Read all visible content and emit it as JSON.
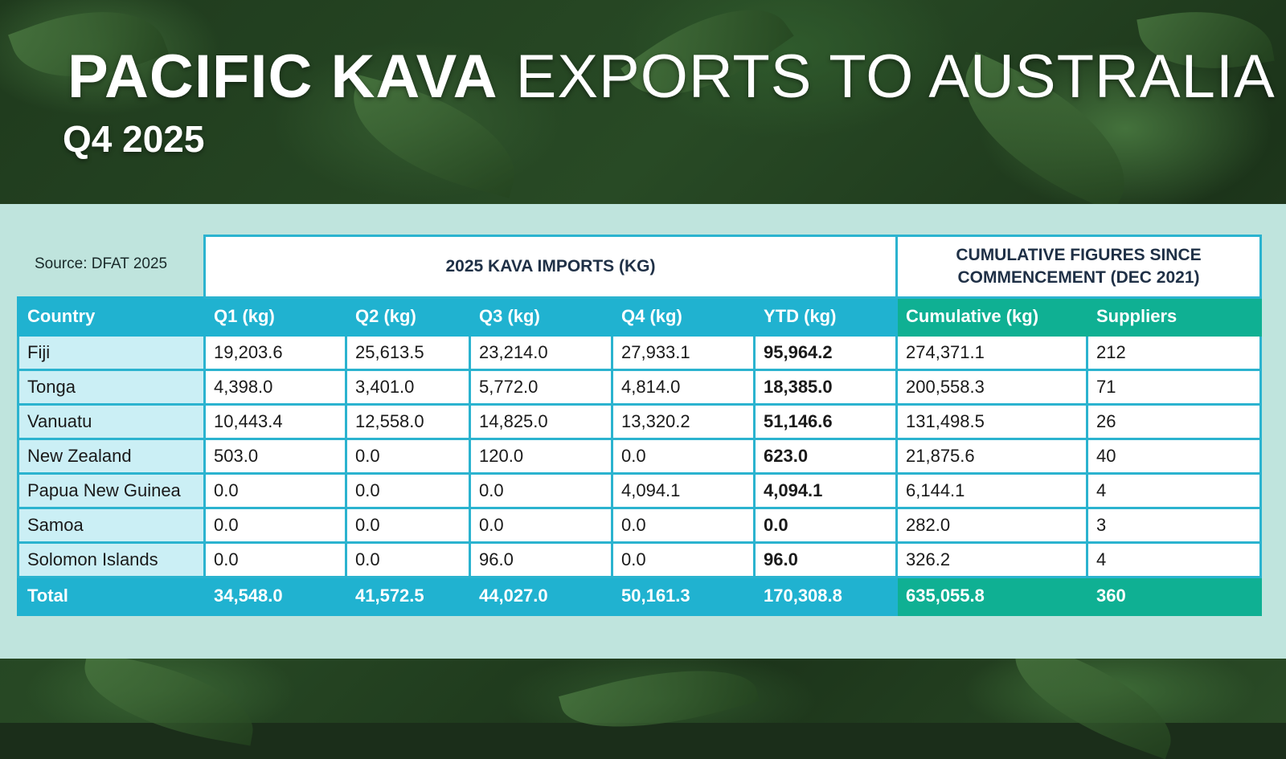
{
  "header": {
    "title_bold": "PACIFIC KAVA",
    "title_regular": "EXPORTS TO AUSTRALIA",
    "subtitle": "Q4 2025"
  },
  "source": "Source: DFAT 2025",
  "group_headers": {
    "imports": "2025 KAVA IMPORTS (KG)",
    "cumulative": "CUMULATIVE FIGURES SINCE COMMENCEMENT (DEC 2021)"
  },
  "colors": {
    "import_header": "#20b2d0",
    "cumulative_header": "#0fb093",
    "panel": "#bfe4dd",
    "country_cell": "#cbeff5"
  },
  "chart_data": {
    "type": "table",
    "title": "PACIFIC KAVA EXPORTS TO AUSTRALIA",
    "subtitle": "Q4 2025",
    "columns": [
      "Country",
      "Q1 (kg)",
      "Q2 (kg)",
      "Q3 (kg)",
      "Q4 (kg)",
      "YTD (kg)",
      "Cumulative (kg)",
      "Suppliers"
    ],
    "rows": [
      [
        "Fiji",
        "19,203.6",
        "25,613.5",
        "23,214.0",
        "27,933.1",
        "95,964.2",
        "274,371.1",
        "212"
      ],
      [
        "Tonga",
        "4,398.0",
        "3,401.0",
        "5,772.0",
        "4,814.0",
        "18,385.0",
        "200,558.3",
        "71"
      ],
      [
        "Vanuatu",
        "10,443.4",
        "12,558.0",
        "14,825.0",
        "13,320.2",
        "51,146.6",
        "131,498.5",
        "26"
      ],
      [
        "New Zealand",
        "503.0",
        "0.0",
        "120.0",
        "0.0",
        "623.0",
        "21,875.6",
        "40"
      ],
      [
        "Papua New Guinea",
        "0.0",
        "0.0",
        "0.0",
        "4,094.1",
        "4,094.1",
        "6,144.1",
        "4"
      ],
      [
        "Samoa",
        "0.0",
        "0.0",
        "0.0",
        "0.0",
        "0.0",
        "282.0",
        "3"
      ],
      [
        "Solomon Islands",
        "0.0",
        "0.0",
        "96.0",
        "0.0",
        "96.0",
        "326.2",
        "4"
      ]
    ],
    "total": [
      "Total",
      "34,548.0",
      "41,572.5",
      "44,027.0",
      "50,161.3",
      "170,308.8",
      "635,055.8",
      "360"
    ]
  }
}
